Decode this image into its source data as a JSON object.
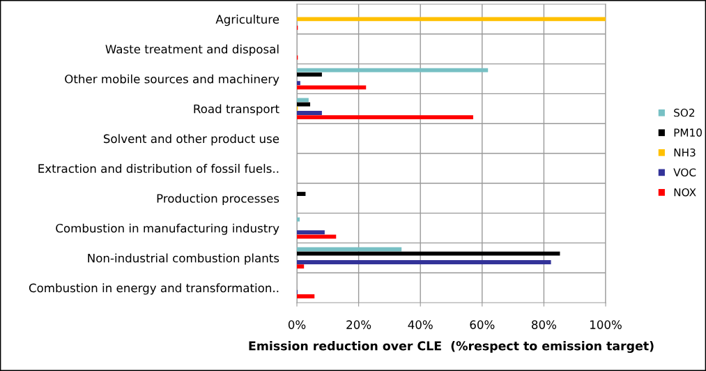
{
  "chart_data": {
    "type": "bar",
    "orientation": "horizontal",
    "xlabel": "Emission reduction over CLE  (%respect to emission target)",
    "categories": [
      "Agriculture",
      "Waste treatment and disposal",
      "Other mobile sources and machinery",
      "Road transport",
      "Solvent and other product use",
      "Extraction and distribution of fossil fuels..",
      "Production processes",
      "Combustion in manufacturing industry",
      "Non-industrial combustion plants",
      "Combustion in energy and transformation.."
    ],
    "series": [
      {
        "name": "SO2",
        "color": "#77c0c4",
        "values": [
          null,
          null,
          61.9,
          3.8,
          null,
          null,
          null,
          0.9,
          33.9,
          null
        ]
      },
      {
        "name": "PM10",
        "color": "#000000",
        "values": [
          null,
          null,
          8.1,
          4.3,
          null,
          null,
          2.8,
          null,
          85.2,
          null
        ]
      },
      {
        "name": "NH3",
        "color": "#ffc000",
        "values": [
          100,
          null,
          null,
          0.3,
          null,
          null,
          null,
          null,
          null,
          null
        ]
      },
      {
        "name": "VOC",
        "color": "#333399",
        "values": [
          null,
          null,
          1.1,
          8.1,
          null,
          null,
          null,
          9.0,
          82.3,
          0.2
        ]
      },
      {
        "name": "NOX",
        "color": "#ff0000",
        "values": [
          0.3,
          0.3,
          22.4,
          57.1,
          null,
          null,
          null,
          12.7,
          2.3,
          5.7
        ]
      }
    ],
    "xlim": [
      0,
      100
    ],
    "xticks": [
      {
        "value": 0,
        "label": "0%"
      },
      {
        "value": 20,
        "label": "20%"
      },
      {
        "value": 40,
        "label": "40%"
      },
      {
        "value": 60,
        "label": "60%"
      },
      {
        "value": 80,
        "label": "80%"
      },
      {
        "value": 100,
        "label": "100%"
      }
    ],
    "grid": true,
    "legend": "right"
  }
}
